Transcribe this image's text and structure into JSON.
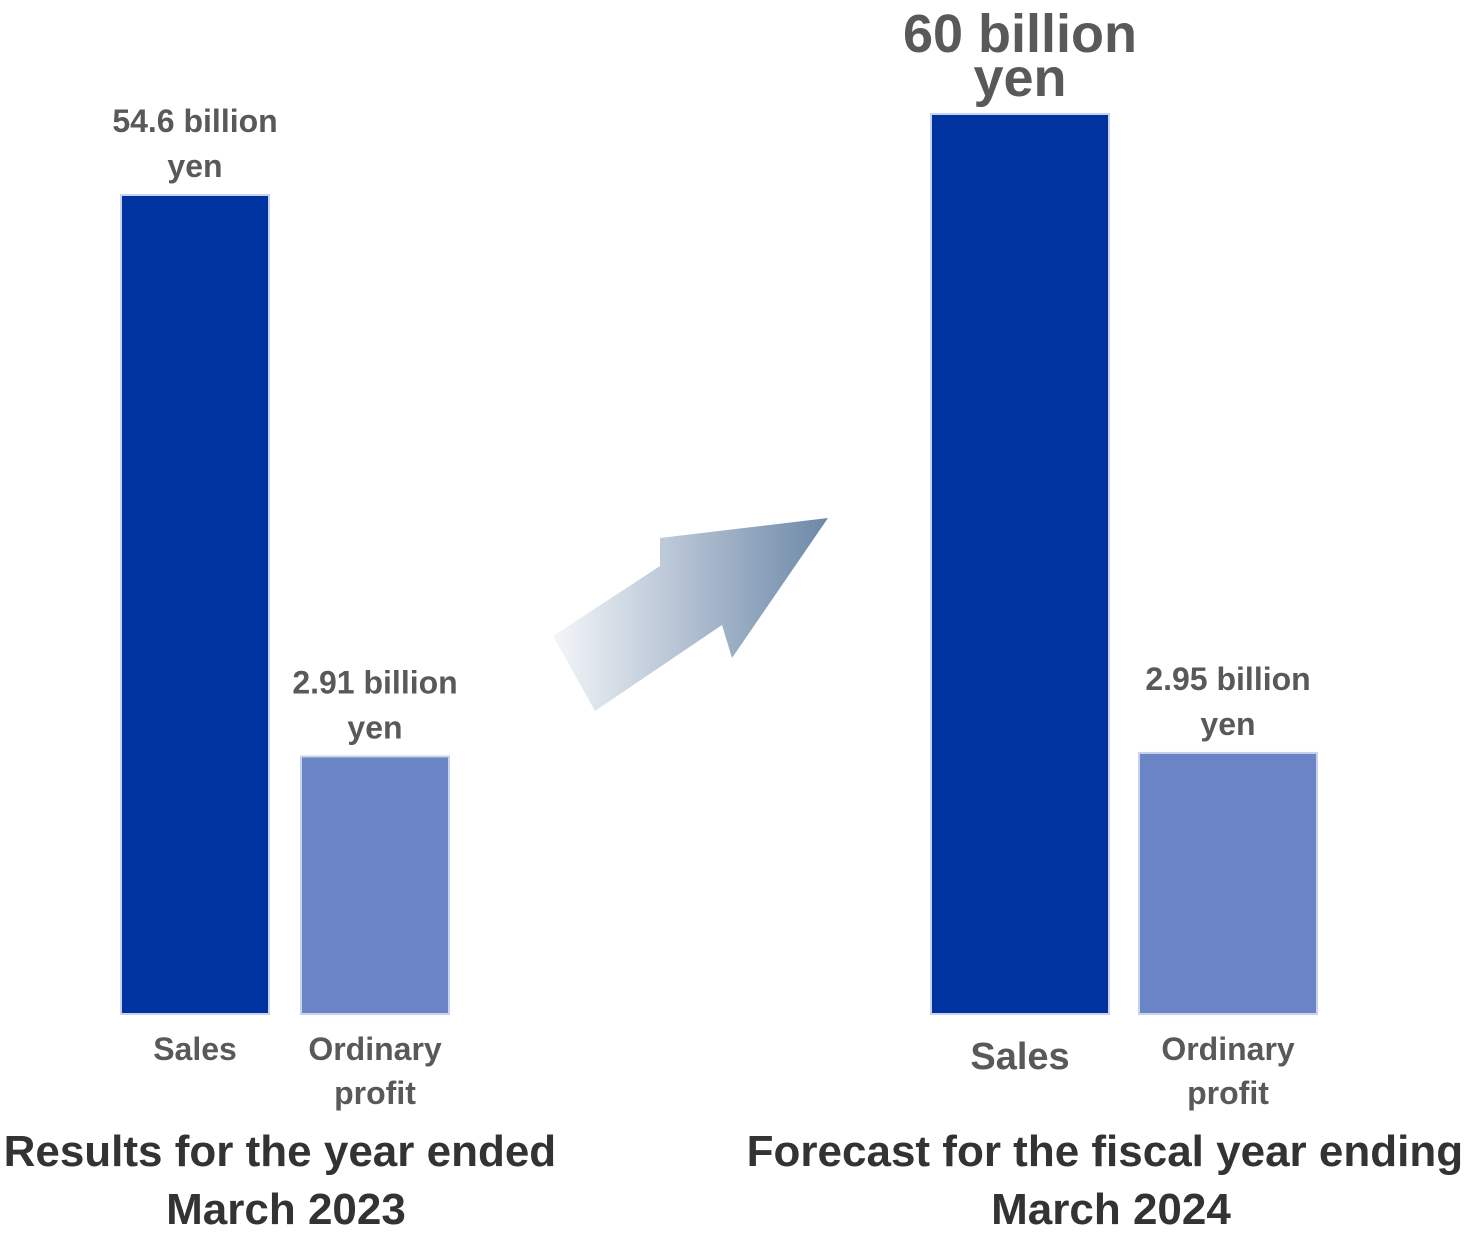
{
  "chart_data": [
    {
      "type": "bar",
      "title": "Results for the year ended March 2023",
      "categories": [
        "Sales",
        "Ordinary profit"
      ],
      "values": [
        54.6,
        2.91
      ],
      "unit": "billion yen",
      "value_labels": [
        "54.6 billion yen",
        "2.91 billion yen"
      ],
      "colors": [
        "#0033a0",
        "#6a84c6"
      ]
    },
    {
      "type": "bar",
      "title": "Forecast for the fiscal year ending March 2024",
      "categories": [
        "Sales",
        "Ordinary profit"
      ],
      "values": [
        60,
        2.95
      ],
      "unit": "billion yen",
      "value_labels": [
        "60 billion yen",
        "2.95 billion yen"
      ],
      "colors": [
        "#0033a0",
        "#6a84c6"
      ]
    }
  ],
  "display": {
    "left": {
      "title_lines": [
        "Results for the year ended",
        "March 2023"
      ],
      "bars": [
        {
          "category_lines": [
            "Sales"
          ],
          "label_lines": [
            "54.6 billion",
            "yen"
          ]
        },
        {
          "category_lines": [
            "Ordinary",
            "profit"
          ],
          "label_lines": [
            "2.91 billion",
            "yen"
          ]
        }
      ]
    },
    "right": {
      "title_lines": [
        "Forecast for the fiscal year ending",
        "March 2024"
      ],
      "bars": [
        {
          "category_lines": [
            "Sales"
          ],
          "label_lines": [
            "60 billion",
            "yen"
          ]
        },
        {
          "category_lines": [
            "Ordinary",
            "profit"
          ],
          "label_lines": [
            "2.95 billion",
            "yen"
          ]
        }
      ]
    }
  },
  "arrow": {
    "icon": "up-right-arrow-icon",
    "color_start": "#f4f6f9",
    "color_end": "#6c88a8"
  }
}
